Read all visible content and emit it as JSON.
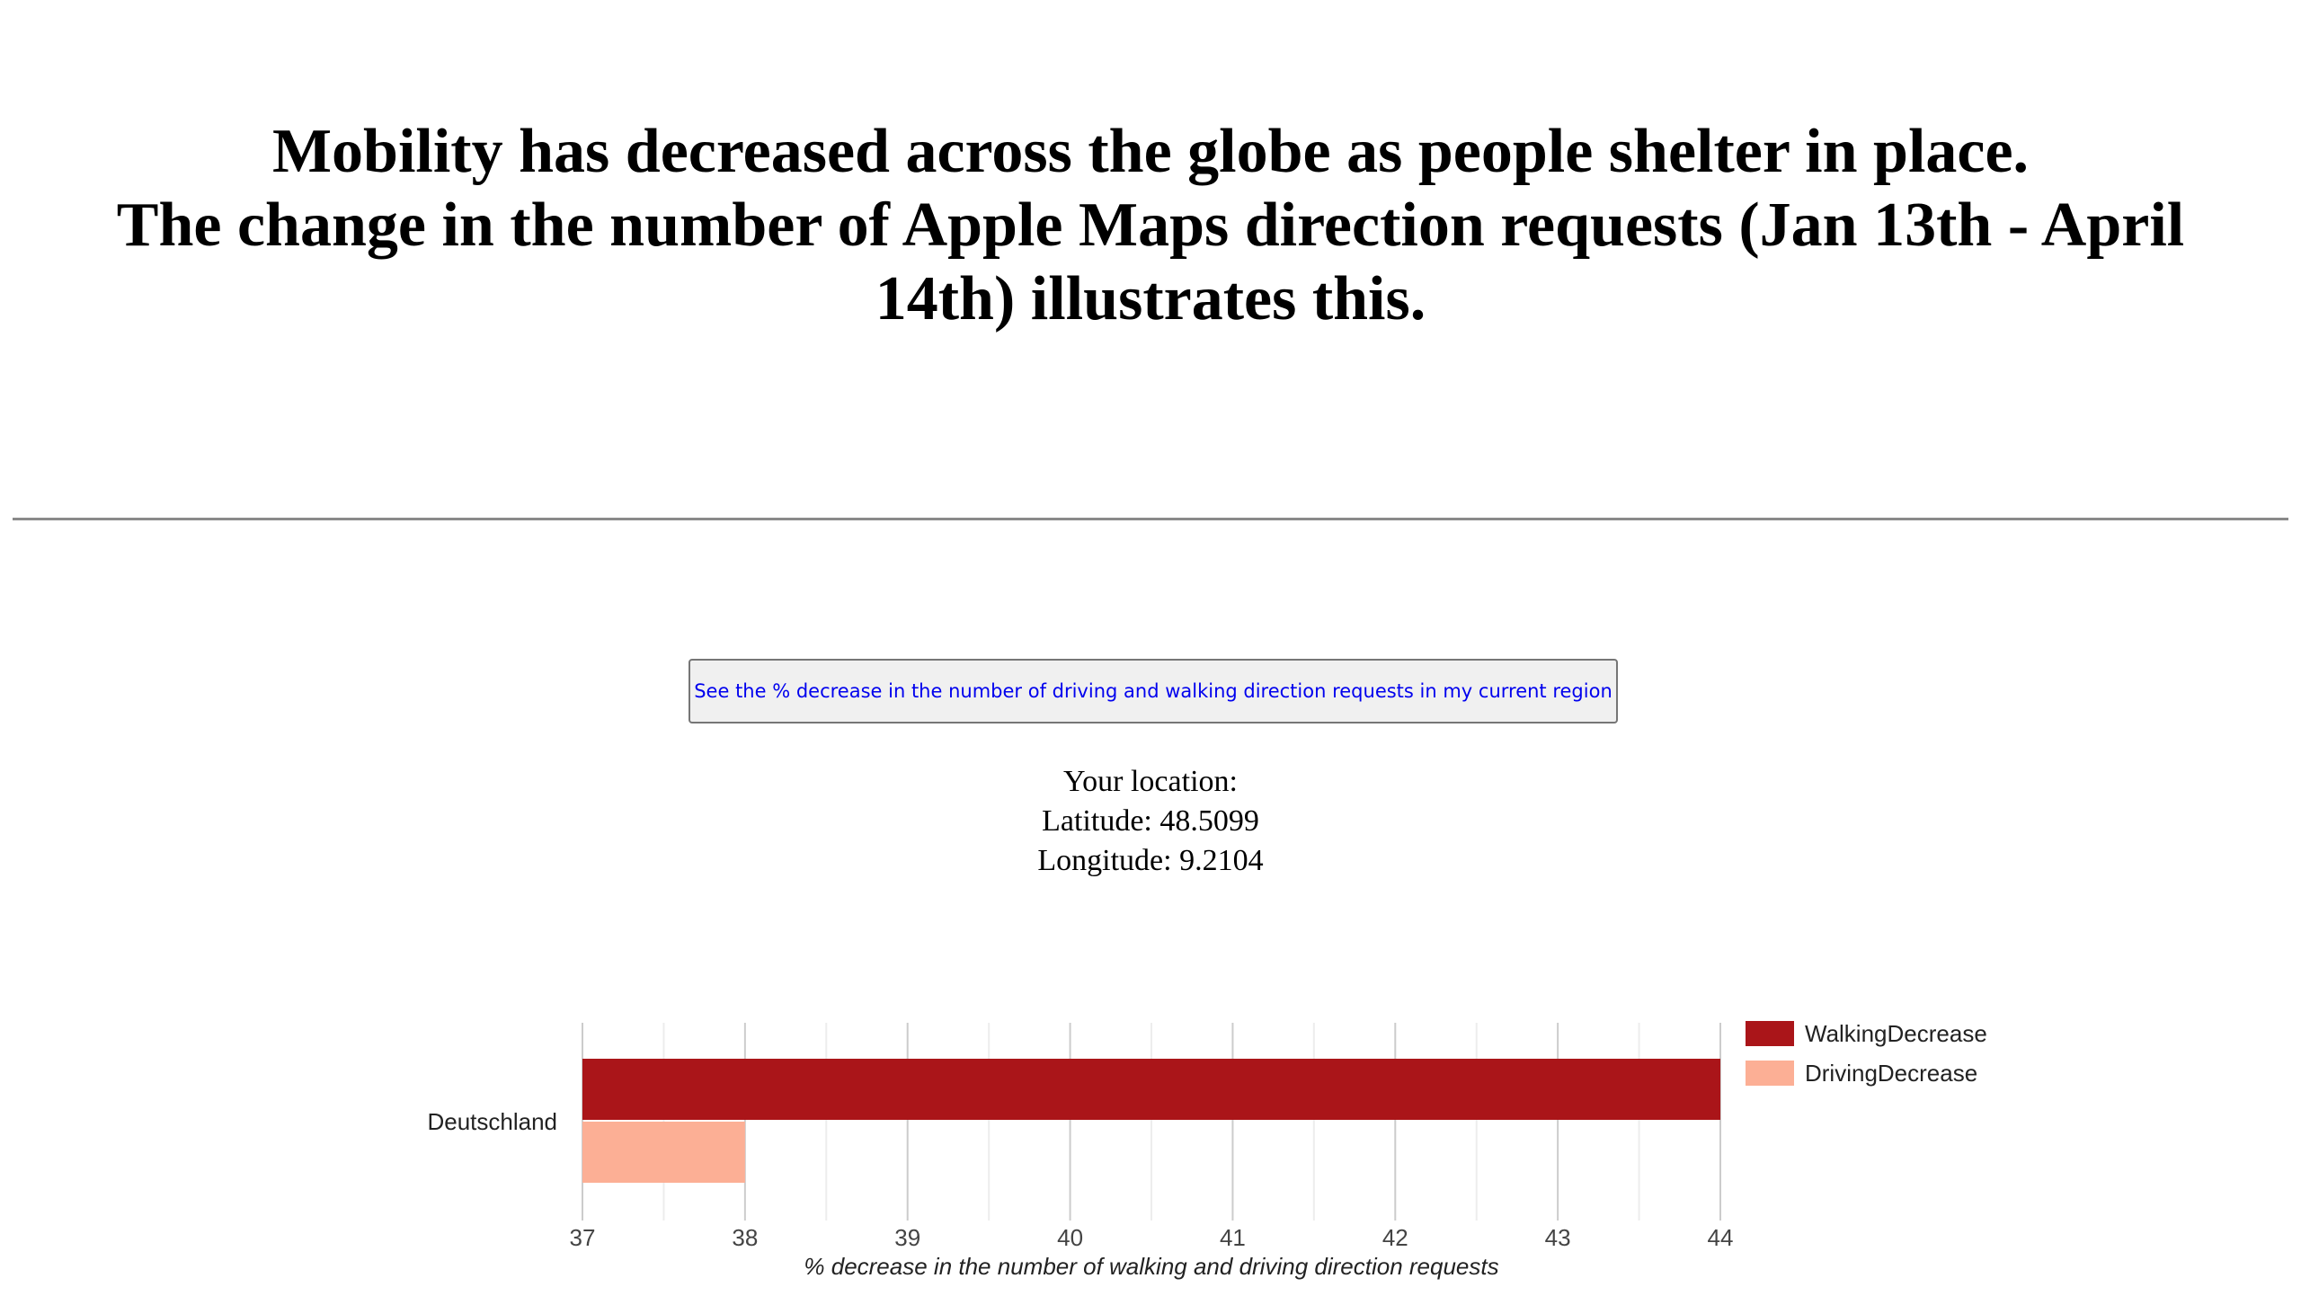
{
  "headline": {
    "line1": "Mobility has decreased across the globe as people shelter in place.",
    "line2": "The change in the number of Apple Maps direction requests (Jan 13th - April 14th) illustrates this."
  },
  "region_button": {
    "label": "See the % decrease in the number of driving and walking direction requests in my current region"
  },
  "location": {
    "heading": "Your location:",
    "latitude": "Latitude: 48.5099",
    "longitude": "Longitude: 9.2104"
  },
  "chart_data": {
    "type": "bar",
    "orientation": "horizontal",
    "categories": [
      "Deutschland"
    ],
    "series": [
      {
        "name": "WalkingDecrease",
        "values": [
          44
        ],
        "color": "#aa1519"
      },
      {
        "name": "DrivingDecrease",
        "values": [
          38
        ],
        "color": "#fcaf95"
      }
    ],
    "xlabel": "% decrease in the number of walking and driving direction requests",
    "ylabel": "",
    "xlim": [
      37,
      44
    ],
    "xticks": [
      37,
      38,
      39,
      40,
      41,
      42,
      43,
      44
    ],
    "grid": true,
    "legend": "right"
  }
}
